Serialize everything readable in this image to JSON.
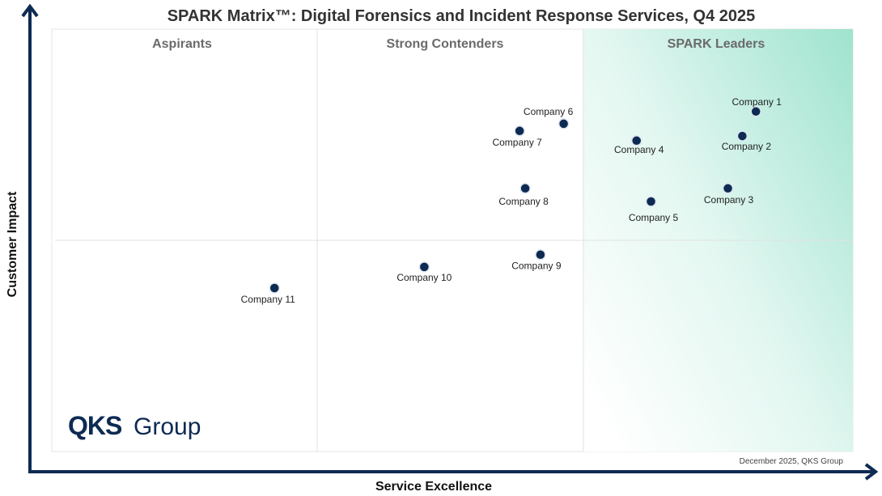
{
  "chart_data": {
    "type": "scatter",
    "title": "SPARK Matrix™: Digital Forensics and Incident Response Services, Q4 2025",
    "xlabel": "Service Excellence",
    "ylabel": "Customer Impact",
    "xlim": [
      0,
      100
    ],
    "ylim": [
      0,
      100
    ],
    "grid": false,
    "quadrants": [
      "Aspirants",
      "Strong Contenders",
      "SPARK Leaders"
    ],
    "points": [
      {
        "label": "Company 1",
        "x": 87.9,
        "y": 80.5
      },
      {
        "label": "Company 2",
        "x": 86.2,
        "y": 74.7
      },
      {
        "label": "Company 3",
        "x": 84.4,
        "y": 62.3
      },
      {
        "label": "Company 4",
        "x": 73.0,
        "y": 73.6
      },
      {
        "label": "Company 5",
        "x": 74.8,
        "y": 59.2
      },
      {
        "label": "Company 6",
        "x": 63.9,
        "y": 77.6
      },
      {
        "label": "Company 7",
        "x": 58.4,
        "y": 75.9
      },
      {
        "label": "Company 8",
        "x": 59.1,
        "y": 62.3
      },
      {
        "label": "Company 9",
        "x": 61.0,
        "y": 46.6
      },
      {
        "label": "Company 10",
        "x": 46.5,
        "y": 43.7
      },
      {
        "label": "Company 11",
        "x": 27.8,
        "y": 38.7
      }
    ],
    "colors": {
      "point": "#0d2a52",
      "axis": "#0d2a52",
      "leader_gradient": "#9fe3cf"
    }
  },
  "logo": {
    "bold": "QKS",
    "light": "Group"
  },
  "footnote": "December 2025, QKS Group"
}
